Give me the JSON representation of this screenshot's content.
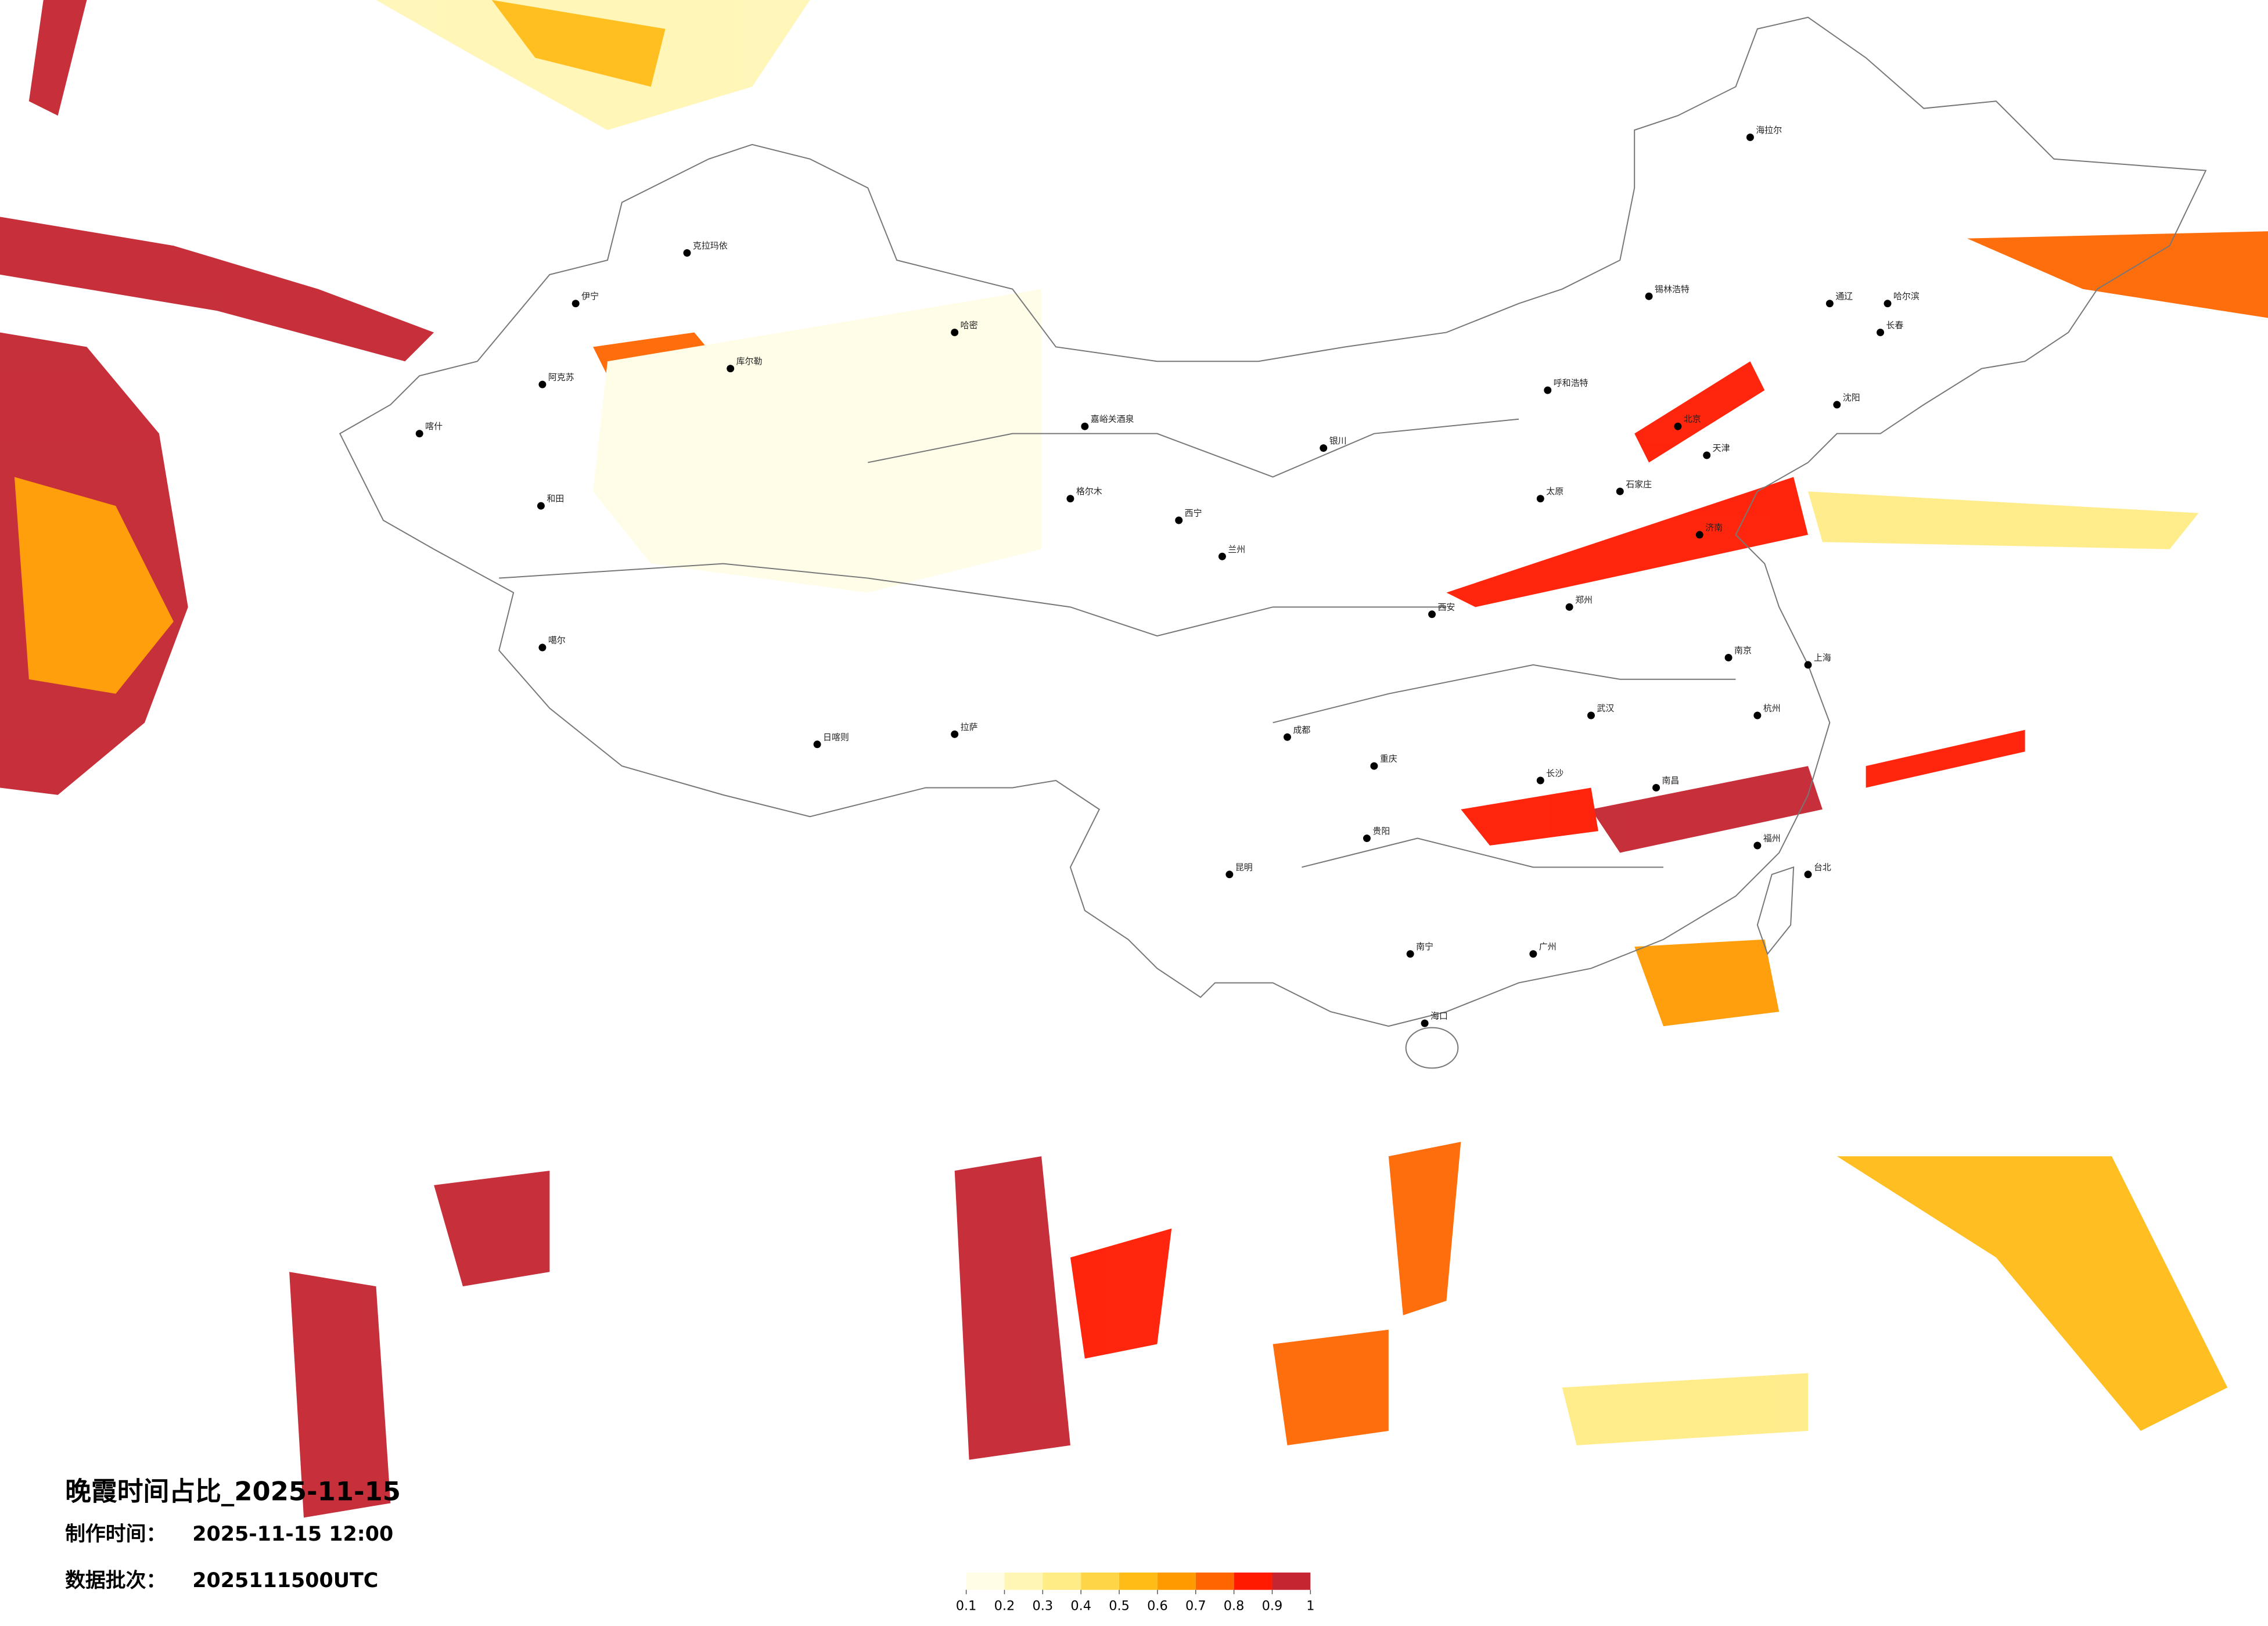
{
  "title": "晚霞时间占比_2025-11-15",
  "made_time": {
    "label": "制作时间：",
    "value": "2025-11-15 12:00"
  },
  "batch": {
    "label": "数据批次：",
    "value": "2025111500UTC"
  },
  "legend": {
    "ticks": [
      0.1,
      0.2,
      0.3,
      0.4,
      0.5,
      0.6,
      0.7,
      0.8,
      0.9,
      1
    ],
    "colors": [
      "#fffde6",
      "#fff6b5",
      "#ffec86",
      "#ffd548",
      "#ffbc16",
      "#ff9a00",
      "#ff6600",
      "#ff1a00",
      "#c42530"
    ]
  },
  "cities": [
    "克拉玛依",
    "伊宁",
    "阿克苏",
    "喀什",
    "和田",
    "库尔勒",
    "哈密",
    "嘉峪关酒泉",
    "格尔木",
    "西宁",
    "兰州",
    "银川",
    "呼和浩特",
    "北京",
    "天津",
    "石家庄",
    "太原",
    "济南",
    "郑州",
    "西安",
    "成都",
    "重庆",
    "贵阳",
    "昆明",
    "南宁",
    "广州",
    "长沙",
    "武汉",
    "南昌",
    "杭州",
    "上海",
    "南京",
    "福州",
    "台北",
    "哈尔滨",
    "长春",
    "沈阳",
    "海口",
    "拉萨",
    "日喀则",
    "噶尔",
    "海拉尔",
    "通辽",
    "锡林浩特"
  ]
}
